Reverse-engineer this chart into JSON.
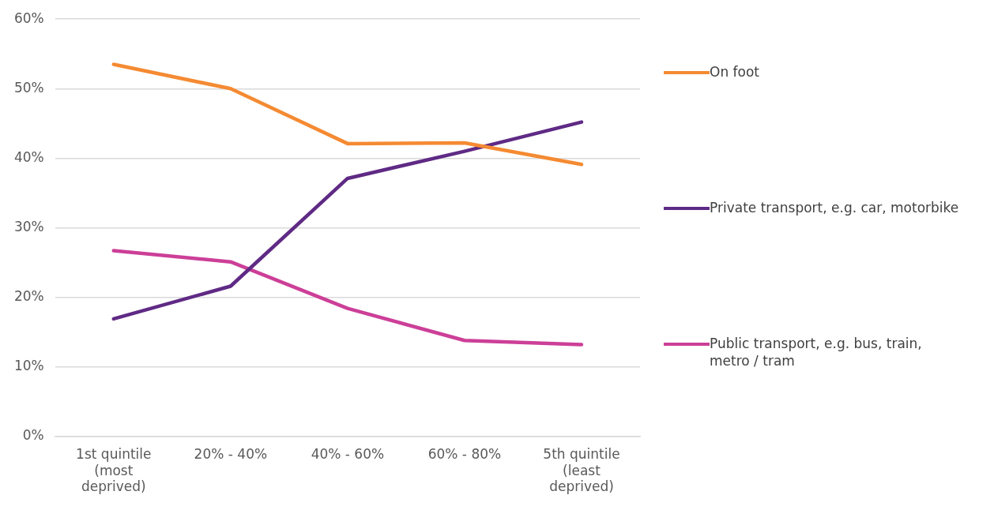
{
  "chart_data": {
    "type": "line",
    "categories": [
      "1st quintile (most deprived)",
      "20% - 40%",
      "40% - 60%",
      "60% - 80%",
      "5th quintile (least deprived)"
    ],
    "series": [
      {
        "name": "On foot",
        "color": "#f58a32",
        "values": [
          53.5,
          50.0,
          42.1,
          42.2,
          39.1
        ]
      },
      {
        "name": "Private transport, e.g. car, motorbike",
        "color": "#5f2a85",
        "values": [
          16.9,
          21.6,
          37.1,
          41.0,
          45.2
        ]
      },
      {
        "name": "Public transport, e.g. bus, train, metro / tram",
        "color": "#cc3f98",
        "values": [
          26.7,
          25.1,
          18.4,
          13.8,
          13.2
        ]
      }
    ],
    "ylim": [
      0,
      60
    ],
    "yticks": [
      {
        "value": 0,
        "label": "0%"
      },
      {
        "value": 10,
        "label": "10%"
      },
      {
        "value": 20,
        "label": "20%"
      },
      {
        "value": 30,
        "label": "30%"
      },
      {
        "value": 40,
        "label": "40%"
      },
      {
        "value": 50,
        "label": "50%"
      },
      {
        "value": 60,
        "label": "60%"
      }
    ],
    "grid": "y",
    "legend": "right",
    "marker": "none",
    "line_style": "solid"
  }
}
